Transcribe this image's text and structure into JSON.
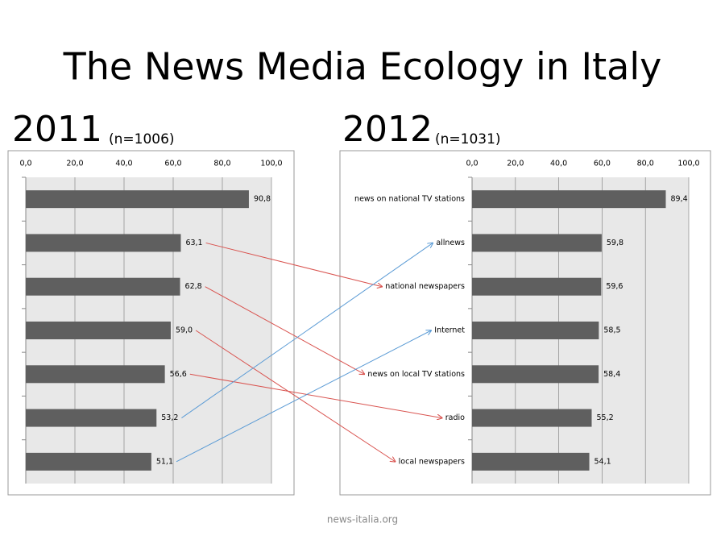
{
  "title": "The News Media Ecology in Italy",
  "footer": "news-italia.org",
  "chart_data": [
    {
      "type": "hbar",
      "title": "2011",
      "subtitle": "(n=1006)",
      "categories": [
        null,
        null,
        null,
        null,
        null,
        null,
        null
      ],
      "values": [
        90.8,
        63.1,
        62.8,
        59.0,
        56.6,
        53.2,
        51.1
      ],
      "value_labels": [
        "90,8",
        "63,1",
        "62,8",
        "59,0",
        "56,6",
        "53,2",
        "51,1"
      ],
      "color": "#5f5f5f",
      "xlim": [
        0,
        100
      ],
      "xticks": [
        {
          "value": 0,
          "label": "0,0"
        },
        {
          "value": 20,
          "label": "20,0"
        },
        {
          "value": 40,
          "label": "40,0"
        },
        {
          "value": 60,
          "label": "60,0"
        },
        {
          "value": 80,
          "label": "80,0"
        },
        {
          "value": 100,
          "label": "100,0"
        }
      ],
      "grid": true
    },
    {
      "type": "hbar",
      "title": "2012",
      "subtitle": "(n=1031)",
      "categories": [
        "news on national TV stations",
        "allnews",
        "national newspapers",
        "Internet",
        "news on local TV stations",
        "radio",
        "local newspapers"
      ],
      "values": [
        89.4,
        59.8,
        59.6,
        58.5,
        58.4,
        55.2,
        54.1
      ],
      "value_labels": [
        "89,4",
        "59,8",
        "59,6",
        "58,5",
        "58,4",
        "55,2",
        "54,1"
      ],
      "color": "#5f5f5f",
      "xlim": [
        0,
        100
      ],
      "xticks": [
        {
          "value": 0,
          "label": "0,0"
        },
        {
          "value": 20,
          "label": "20,0"
        },
        {
          "value": 40,
          "label": "40,0"
        },
        {
          "value": 60,
          "label": "60,0"
        },
        {
          "value": 80,
          "label": "80,0"
        },
        {
          "value": 100,
          "label": "100,0"
        }
      ],
      "grid": true
    }
  ]
}
